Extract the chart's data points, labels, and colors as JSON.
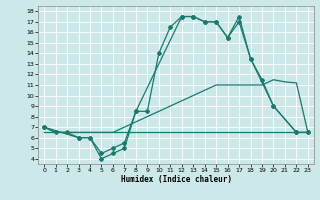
{
  "xlabel": "Humidex (Indice chaleur)",
  "xlim": [
    -0.5,
    23.5
  ],
  "ylim": [
    3.5,
    18.5
  ],
  "xticks": [
    0,
    1,
    2,
    3,
    4,
    5,
    6,
    7,
    8,
    9,
    10,
    11,
    12,
    13,
    14,
    15,
    16,
    17,
    18,
    19,
    20,
    21,
    22,
    23
  ],
  "yticks": [
    4,
    5,
    6,
    7,
    8,
    9,
    10,
    11,
    12,
    13,
    14,
    15,
    16,
    17,
    18
  ],
  "bg_color": "#cce8e8",
  "grid_color": "#ffffff",
  "line_color": "#1a7a6e",
  "curve1_no_marker": {
    "x": [
      0,
      1,
      2,
      3,
      4,
      5,
      6,
      7,
      8,
      9,
      10,
      11,
      12,
      13,
      14,
      15,
      16,
      17,
      18,
      19,
      20,
      21,
      22,
      23
    ],
    "y": [
      6.5,
      6.5,
      6.5,
      6.5,
      6.5,
      6.5,
      6.5,
      6.5,
      6.5,
      6.5,
      6.5,
      6.5,
      6.5,
      6.5,
      6.5,
      6.5,
      6.5,
      6.5,
      6.5,
      6.5,
      6.5,
      6.5,
      6.5,
      6.5
    ]
  },
  "curve2_no_marker": {
    "x": [
      0,
      1,
      2,
      3,
      4,
      5,
      6,
      7,
      8,
      9,
      10,
      11,
      12,
      13,
      14,
      15,
      16,
      17,
      18,
      19,
      20,
      21,
      22,
      23
    ],
    "y": [
      7.0,
      6.5,
      6.5,
      6.5,
      6.5,
      6.5,
      6.5,
      7.0,
      7.5,
      8.0,
      8.5,
      9.0,
      9.5,
      10.0,
      10.5,
      11.0,
      11.0,
      11.0,
      11.0,
      11.0,
      11.5,
      11.3,
      11.2,
      6.5
    ]
  },
  "curve3_marker": {
    "x": [
      0,
      1,
      2,
      3,
      4,
      5,
      6,
      7,
      8,
      9,
      10,
      11,
      12,
      13,
      14,
      15,
      16,
      17,
      18,
      19,
      20,
      22,
      23
    ],
    "y": [
      7.0,
      6.5,
      6.5,
      6.0,
      6.0,
      4.5,
      5.0,
      5.5,
      8.5,
      8.5,
      14.0,
      16.5,
      17.5,
      17.5,
      17.0,
      17.0,
      15.5,
      17.0,
      13.5,
      11.5,
      9.0,
      6.5,
      6.5
    ]
  },
  "curve4_marker": {
    "x": [
      0,
      3,
      4,
      5,
      6,
      7,
      8,
      12,
      13,
      14,
      15,
      16,
      17,
      18,
      20,
      22,
      23
    ],
    "y": [
      7.0,
      6.0,
      6.0,
      4.0,
      4.5,
      5.0,
      8.5,
      17.5,
      17.5,
      17.0,
      17.0,
      15.5,
      17.5,
      13.5,
      9.0,
      6.5,
      6.5
    ]
  }
}
